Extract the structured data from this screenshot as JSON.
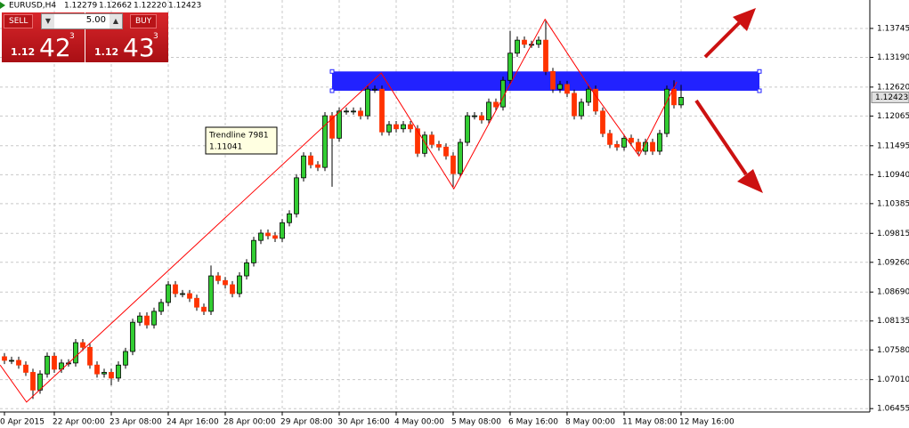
{
  "chart_data": {
    "type": "candlestick",
    "title": "EURUSD,H4",
    "ohlc_labels": [
      "1.12279",
      "1.12662",
      "1.12220",
      "1.12423"
    ],
    "categories": [
      "0 Apr 2015",
      null,
      null,
      null,
      null,
      null,
      null,
      "22 Apr 00:00",
      null,
      null,
      null,
      null,
      null,
      null,
      null,
      "23 Apr 08:00",
      null,
      null,
      null,
      null,
      null,
      null,
      null,
      "24 Apr 16:00",
      null,
      null,
      null,
      null,
      null,
      null,
      null,
      "28 Apr 00:00",
      null,
      null,
      null,
      null,
      null,
      null,
      null,
      "29 Apr 08:00",
      null,
      null,
      null,
      null,
      null,
      null,
      null,
      "30 Apr 16:00",
      null,
      null,
      null,
      null,
      null,
      null,
      null,
      "4 May 00:00",
      null,
      null,
      null,
      null,
      null,
      null,
      null,
      "5 May 08:00",
      null,
      null,
      null,
      null,
      null,
      null,
      null,
      "6 May 16:00",
      null,
      null,
      null,
      null,
      null,
      null,
      null,
      "8 May 00:00",
      null,
      null,
      null,
      null,
      null,
      null,
      null,
      "11 May 08:00",
      null,
      null,
      null,
      null,
      null,
      null,
      null,
      "12 May 16:00"
    ],
    "open": [
      1.0745,
      1.0738,
      1.0738,
      1.0729,
      1.0715,
      1.0681,
      1.0712,
      1.0746,
      1.0721,
      1.0733,
      1.0733,
      1.0772,
      1.0763,
      1.0729,
      1.0712,
      1.0715,
      1.0704,
      1.0729,
      1.0755,
      1.0811,
      1.0823,
      1.0806,
      1.0832,
      1.0849,
      1.0883,
      1.0866,
      1.0866,
      1.0857,
      1.084,
      1.0832,
      1.09,
      1.0891,
      1.0883,
      1.0866,
      1.09,
      1.0925,
      1.0968,
      1.0982,
      1.0977,
      1.0972,
      1.1002,
      1.1019,
      1.1088,
      1.113,
      1.1113,
      1.1108,
      1.1207,
      1.1164,
      1.1216,
      1.1216,
      1.1216,
      1.1207,
      1.1258,
      1.1258,
      1.1176,
      1.119,
      1.1182,
      1.119,
      1.1182,
      1.1135,
      1.117,
      1.1152,
      1.1147,
      1.113,
      1.1096,
      1.1156,
      1.1207,
      1.1207,
      1.1199,
      1.1233,
      1.1224,
      1.1275,
      1.1327,
      1.1352,
      1.1344,
      1.1344,
      1.1352,
      1.1292,
      1.1258,
      1.1267,
      1.125,
      1.1207,
      1.1233,
      1.1258,
      1.1216,
      1.1173,
      1.1152,
      1.1147,
      1.1164,
      1.1156,
      1.1139,
      1.1156,
      1.1139,
      1.1173,
      1.1258,
      1.12279
    ],
    "high": [
      1.0752,
      1.0745,
      1.0745,
      1.0736,
      1.0722,
      1.0719,
      1.0753,
      1.0753,
      1.074,
      1.074,
      1.0779,
      1.0779,
      1.077,
      1.0736,
      1.0722,
      1.0722,
      1.0736,
      1.0762,
      1.0818,
      1.083,
      1.083,
      1.0839,
      1.0856,
      1.089,
      1.089,
      1.0873,
      1.0873,
      1.0864,
      1.0847,
      1.092,
      1.0907,
      1.0898,
      1.089,
      1.0907,
      1.0932,
      1.0975,
      1.0989,
      1.0989,
      1.0984,
      1.1009,
      1.1026,
      1.1095,
      1.1137,
      1.1137,
      1.112,
      1.1214,
      1.1214,
      1.1223,
      1.1223,
      1.1223,
      1.1223,
      1.1265,
      1.1265,
      1.1265,
      1.1197,
      1.1197,
      1.1197,
      1.1197,
      1.1189,
      1.1177,
      1.1177,
      1.1159,
      1.1154,
      1.1137,
      1.1163,
      1.1214,
      1.1214,
      1.1214,
      1.124,
      1.124,
      1.1282,
      1.137,
      1.1359,
      1.1359,
      1.1351,
      1.1359,
      1.1391,
      1.1299,
      1.1274,
      1.1274,
      1.1257,
      1.124,
      1.1265,
      1.1265,
      1.1223,
      1.118,
      1.1159,
      1.1171,
      1.1171,
      1.1163,
      1.1163,
      1.1163,
      1.118,
      1.1265,
      1.1275,
      1.12662
    ],
    "low": [
      1.0731,
      1.0731,
      1.0722,
      1.0708,
      1.0664,
      1.0674,
      1.0705,
      1.0714,
      1.0714,
      1.0726,
      1.0726,
      1.0756,
      1.0722,
      1.0705,
      1.0705,
      1.069,
      1.0697,
      1.0722,
      1.0748,
      1.0804,
      1.0799,
      1.0799,
      1.0825,
      1.0842,
      1.0859,
      1.0859,
      1.085,
      1.0833,
      1.0825,
      1.0825,
      1.0884,
      1.0876,
      1.0859,
      1.0859,
      1.0893,
      1.0918,
      1.0961,
      1.097,
      1.0965,
      1.0965,
      1.0995,
      1.1012,
      1.1081,
      1.1106,
      1.1101,
      1.1101,
      1.1071,
      1.1157,
      1.1209,
      1.1209,
      1.12,
      1.12,
      1.1251,
      1.1169,
      1.1169,
      1.1175,
      1.1175,
      1.1175,
      1.1128,
      1.1128,
      1.1145,
      1.114,
      1.1123,
      1.1071,
      1.1089,
      1.1149,
      1.12,
      1.1192,
      1.1192,
      1.1217,
      1.1217,
      1.1268,
      1.132,
      1.1337,
      1.1337,
      1.1337,
      1.1285,
      1.1251,
      1.1251,
      1.1243,
      1.12,
      1.12,
      1.1226,
      1.1209,
      1.1166,
      1.1145,
      1.114,
      1.114,
      1.1149,
      1.1132,
      1.1132,
      1.1132,
      1.1132,
      1.1166,
      1.1221,
      1.1222
    ],
    "close": [
      1.0738,
      1.0738,
      1.0729,
      1.0715,
      1.0681,
      1.0712,
      1.0746,
      1.0721,
      1.0733,
      1.0733,
      1.0772,
      1.0763,
      1.0729,
      1.0712,
      1.0715,
      1.0704,
      1.0729,
      1.0755,
      1.0811,
      1.0823,
      1.0806,
      1.0832,
      1.0849,
      1.0883,
      1.0866,
      1.0866,
      1.0857,
      1.084,
      1.0832,
      1.09,
      1.0891,
      1.0883,
      1.0866,
      1.09,
      1.0925,
      1.0968,
      1.0982,
      1.0977,
      1.0972,
      1.1002,
      1.1019,
      1.1088,
      1.113,
      1.1113,
      1.1108,
      1.1207,
      1.1164,
      1.1216,
      1.1216,
      1.1216,
      1.1207,
      1.1258,
      1.1258,
      1.1176,
      1.119,
      1.1182,
      1.119,
      1.1182,
      1.1135,
      1.117,
      1.1152,
      1.1147,
      1.113,
      1.1096,
      1.1156,
      1.1207,
      1.1207,
      1.1199,
      1.1233,
      1.1224,
      1.1275,
      1.1327,
      1.1352,
      1.1344,
      1.1344,
      1.1352,
      1.1292,
      1.1258,
      1.1267,
      1.125,
      1.1207,
      1.1233,
      1.1258,
      1.1216,
      1.1173,
      1.1152,
      1.1147,
      1.1164,
      1.1156,
      1.1139,
      1.1156,
      1.1139,
      1.1173,
      1.1258,
      1.1228,
      1.12423
    ],
    "up_color": "#32cd32",
    "down_color": "#ff3300",
    "ylim": [
      1.0639,
      1.1429
    ],
    "yticks": [
      1.13745,
      {
        "value": 1.1319,
        "label": "1.13190"
      },
      {
        "value": 1.1262,
        "label": "1.12620"
      },
      1.12065,
      1.11495,
      {
        "value": 1.1094,
        "label": "1.10940"
      },
      1.10385,
      1.09815,
      {
        "value": 1.0926,
        "label": "1.09260"
      },
      {
        "value": 1.0869,
        "label": "1.08690"
      },
      1.08135,
      {
        "value": 1.0758,
        "label": "1.07580"
      },
      {
        "value": 1.0701,
        "label": "1.07010"
      },
      1.06455
    ],
    "grid": true,
    "zigzag": {
      "color": "#ff0000",
      "x": [
        -0.6,
        3.1,
        52.9,
        63.1,
        75.9,
        82.1,
        89.1,
        94.4
      ],
      "values": [
        1.0729,
        1.0658,
        1.1289,
        1.1067,
        1.1392,
        1.1263,
        1.113,
        1.1272
      ]
    },
    "rectangle": {
      "color": "#2222ff",
      "x": [
        46,
        106
      ],
      "values": [
        1.1255,
        1.1292
      ]
    },
    "annotation": [
      "Trendline 7981",
      "1.11041"
    ]
  },
  "trade_panel": {
    "sell": {
      "label": "SELL",
      "prefix": "1.12",
      "big": "42",
      "sup": "3"
    },
    "buy": {
      "label": "BUY",
      "prefix": "1.12",
      "big": "43",
      "sup": "3"
    },
    "lots": "5.00"
  }
}
